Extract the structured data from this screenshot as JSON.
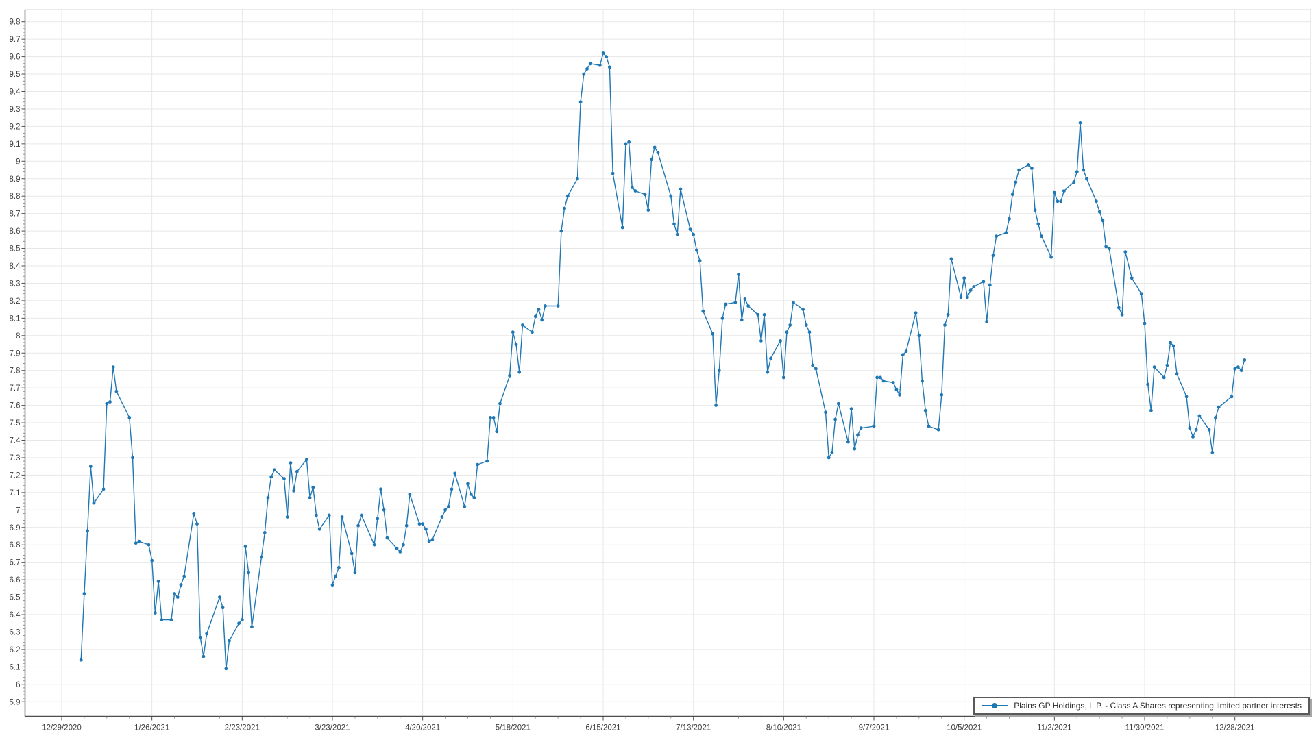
{
  "chart_data": {
    "type": "line",
    "title": "",
    "xlabel": "",
    "ylabel": "",
    "ylim": [
      5.9,
      9.8
    ],
    "y_tick_step": 0.1,
    "grid": true,
    "legend_position": "bottom-right",
    "x_tick_labels": [
      "12/29/2020",
      "1/26/2021",
      "2/23/2021",
      "3/23/2021",
      "4/20/2021",
      "5/18/2021",
      "6/15/2021",
      "7/13/2021",
      "8/10/2021",
      "9/7/2021",
      "10/5/2021",
      "11/2/2021",
      "11/30/2021",
      "12/28/2021"
    ],
    "x_tick_interval_days": 28,
    "series": [
      {
        "name": "Plains GP Holdings, L.P. - Class A Shares representing limited partner interests",
        "color": "#1f77b4",
        "start_date": "2021-01-04",
        "frequency": "daily-trading-days",
        "values": [
          6.14,
          6.52,
          6.88,
          7.25,
          7.04,
          7.12,
          7.61,
          7.62,
          7.82,
          7.68,
          7.53,
          7.3,
          6.81,
          6.82,
          6.8,
          6.71,
          6.41,
          6.59,
          6.37,
          6.37,
          6.52,
          6.5,
          6.57,
          6.62,
          6.98,
          6.92,
          6.27,
          6.16,
          6.29,
          6.5,
          6.44,
          6.09,
          6.25,
          6.35,
          6.37,
          6.79,
          6.64,
          6.33,
          6.73,
          6.87,
          7.07,
          7.19,
          7.23,
          7.18,
          6.96,
          7.27,
          7.11,
          7.22,
          7.29,
          7.07,
          7.13,
          6.97,
          6.89,
          6.97,
          6.57,
          6.62,
          6.67,
          6.96,
          6.75,
          6.64,
          6.91,
          6.97,
          6.8,
          6.95,
          7.12,
          7.0,
          6.84,
          6.78,
          6.76,
          6.8,
          6.91,
          7.09,
          6.92,
          6.92,
          6.89,
          6.82,
          6.83,
          6.96,
          7.0,
          7.02,
          7.12,
          7.21,
          7.02,
          7.15,
          7.09,
          7.07,
          7.26,
          7.28,
          7.53,
          7.53,
          7.45,
          7.61,
          7.77,
          8.02,
          7.95,
          7.79,
          8.06,
          8.02,
          8.11,
          8.15,
          8.09,
          8.17,
          8.17,
          8.6,
          8.73,
          8.8,
          8.9,
          9.34,
          9.5,
          9.53,
          9.56,
          9.55,
          9.62,
          9.6,
          9.54,
          8.93,
          8.62,
          9.1,
          9.11,
          8.85,
          8.83,
          8.81,
          8.72,
          9.01,
          9.08,
          9.05,
          8.8,
          8.64,
          8.58,
          8.84,
          8.61,
          8.58,
          8.49,
          8.43,
          8.14,
          8.01,
          7.6,
          7.8,
          8.1,
          8.18,
          8.19,
          8.35,
          8.09,
          8.21,
          8.17,
          8.12,
          7.97,
          8.12,
          7.79,
          7.87,
          7.97,
          7.76,
          8.02,
          8.06,
          8.19,
          8.15,
          8.06,
          8.02,
          7.83,
          7.81,
          7.56,
          7.3,
          7.33,
          7.52,
          7.61,
          7.39,
          7.58,
          7.35,
          7.43,
          7.47,
          7.48,
          7.76,
          7.76,
          7.74,
          7.73,
          7.69,
          7.66,
          7.89,
          7.91,
          8.13,
          8.0,
          7.74,
          7.57,
          7.48,
          7.46,
          7.66,
          8.06,
          8.12,
          8.44,
          8.22,
          8.33,
          8.22,
          8.26,
          8.28,
          8.31,
          8.08,
          8.29,
          8.46,
          8.57,
          8.59,
          8.67,
          8.81,
          8.88,
          8.95,
          8.98,
          8.96,
          8.72,
          8.64,
          8.57,
          8.45,
          8.82,
          8.77,
          8.77,
          8.83,
          8.88,
          8.94,
          9.22,
          8.95,
          8.9,
          8.77,
          8.71,
          8.66,
          8.51,
          8.5,
          8.16,
          8.12,
          8.48,
          8.33,
          8.24,
          8.07,
          7.72,
          7.57,
          7.82,
          7.76,
          7.83,
          7.96,
          7.94,
          7.78,
          7.65,
          7.47,
          7.42,
          7.46,
          7.54,
          7.46,
          7.33,
          7.53,
          7.59,
          7.65,
          7.81,
          7.82,
          7.8,
          7.86
        ]
      }
    ]
  },
  "legend": {
    "label": "Plains GP Holdings, L.P. - Class A Shares representing limited partner interests"
  },
  "colors": {
    "series": "#1f77b4",
    "grid": "#e7e7e7",
    "axis": "#4d4d4d",
    "border": "#d4d4d4",
    "tick_text": "#3f3f3f",
    "background": "#ffffff"
  }
}
